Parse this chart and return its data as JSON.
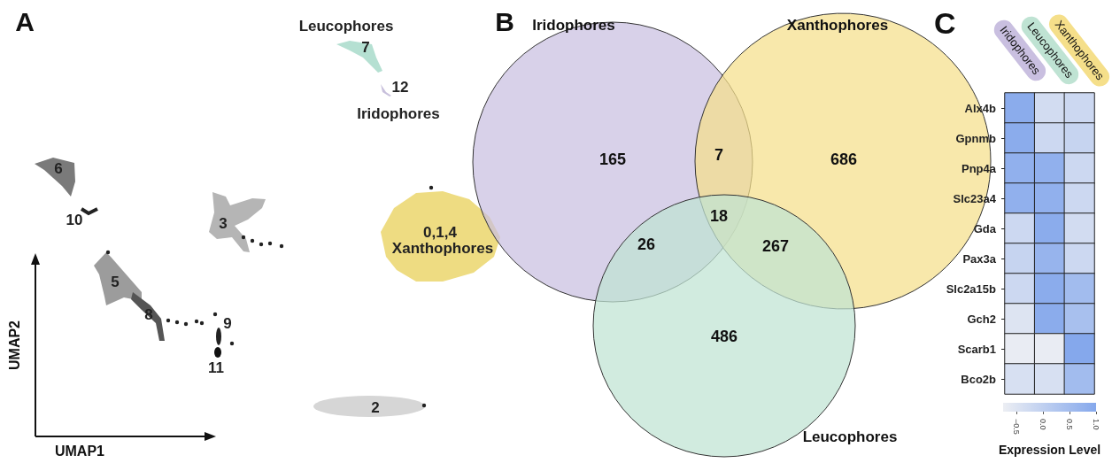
{
  "chart_data": [
    {
      "type": "other",
      "title": "A",
      "xlabel": "UMAP1",
      "ylabel": "UMAP2",
      "annotations": [
        "6",
        "10",
        "3",
        "5",
        "8",
        "9",
        "11",
        "2",
        "7",
        "12",
        "Leucophores",
        "Iridophores",
        "0,1,4",
        "Xanthophores"
      ]
    },
    {
      "type": "other",
      "title": "B",
      "categories": [
        "Iridophores",
        "Xanthophores",
        "Leucophores"
      ],
      "colors": [
        "#c9bfe0",
        "#f5df8a",
        "#bfe3d3"
      ],
      "annotations": [
        "165",
        "686",
        "486",
        "7",
        "26",
        "267",
        "18"
      ]
    },
    {
      "type": "heatmap",
      "title": "C",
      "categories": [
        "Iridophores",
        "Leucophores",
        "Xanthophores"
      ],
      "colors": [
        "#c9bfe0",
        "#bfe3d3",
        "#f5df8a"
      ],
      "y_categories": [
        "Alx4b",
        "Gpnmb",
        "Pnp4a",
        "Slc23a4",
        "Gda",
        "Pax3a",
        "Slc2a15b",
        "Gch2",
        "Scarb1",
        "Bco2b"
      ],
      "cells": [
        [
          0.9,
          -0.3,
          -0.2
        ],
        [
          0.9,
          -0.2,
          -0.1
        ],
        [
          0.8,
          0.8,
          -0.2
        ],
        [
          0.8,
          0.8,
          -0.2
        ],
        [
          -0.2,
          0.9,
          -0.3
        ],
        [
          -0.1,
          0.7,
          -0.2
        ],
        [
          -0.2,
          0.9,
          0.5
        ],
        [
          -0.5,
          0.9,
          0.4
        ],
        [
          -0.7,
          -0.7,
          1.0
        ],
        [
          -0.4,
          -0.4,
          0.5
        ]
      ],
      "clim": [
        -0.75,
        1.0
      ],
      "cticks": [
        {
          "value": -0.5,
          "label": "−0.5"
        },
        {
          "value": 0,
          "label": "0.0"
        },
        {
          "value": 0.5,
          "label": "0.5"
        },
        {
          "value": 1,
          "label": "1.0"
        }
      ],
      "clabel": "Expression Level"
    }
  ]
}
